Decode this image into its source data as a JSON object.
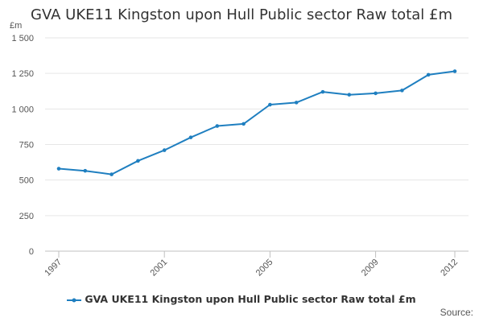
{
  "chart_data": {
    "type": "line",
    "title": "GVA UKE11 Kingston upon Hull Public sector Raw total £m",
    "ylabel": "£m",
    "xlabel": "",
    "ylim": [
      0,
      1500
    ],
    "yticks": [
      "0",
      "250",
      "500",
      "750",
      "1 000",
      "1 250",
      "1 500"
    ],
    "ytick_values": [
      0,
      250,
      500,
      750,
      1000,
      1250,
      1500
    ],
    "xticks": [
      "1997",
      "2001",
      "2005",
      "2009",
      "2012"
    ],
    "xtick_values": [
      1997,
      2001,
      2005,
      2009,
      2012
    ],
    "grid": true,
    "legend_position": "bottom",
    "x": [
      1997,
      1998,
      1999,
      2000,
      2001,
      2002,
      2003,
      2004,
      2005,
      2006,
      2007,
      2008,
      2009,
      2010,
      2011,
      2012
    ],
    "series": [
      {
        "name": "GVA UKE11 Kingston upon Hull Public sector Raw total £m",
        "color": "#1f7fc0",
        "values": [
          580,
          565,
          540,
          635,
          710,
          800,
          880,
          895,
          1030,
          1045,
          1120,
          1100,
          1110,
          1130,
          1240,
          1265
        ]
      }
    ]
  },
  "legend": {
    "label": "GVA UKE11 Kingston upon Hull Public sector Raw total £m"
  },
  "footer": {
    "source_label": "Source:"
  }
}
